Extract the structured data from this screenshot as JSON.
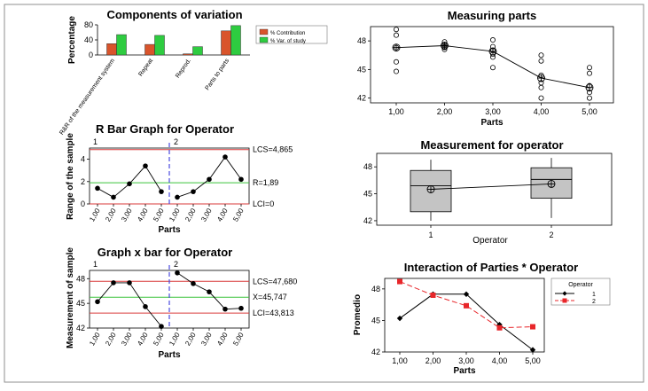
{
  "chart_data": [
    {
      "id": "components",
      "type": "bar",
      "title": "Components of variation",
      "ylabel": "Percentage",
      "ylim": [
        0,
        80
      ],
      "yticks": [
        "0",
        "40",
        "80"
      ],
      "categories": [
        "R&R of the measurement system",
        "Repeat",
        "Reprod.",
        "Parts to parts"
      ],
      "series": [
        {
          "name": "% Contribution",
          "values": [
            30,
            28,
            3,
            64
          ],
          "color": "#d9542b"
        },
        {
          "name": "% Var. of study",
          "values": [
            54,
            52,
            22,
            78
          ],
          "color": "#2ecc40"
        }
      ],
      "legend": "top-right"
    },
    {
      "id": "measuring_parts",
      "type": "scatter",
      "title": "Measuring parts",
      "xlabel": "Parts",
      "ylim": [
        41.5,
        49.5
      ],
      "yticks": [
        "42",
        "45",
        "48"
      ],
      "categories": [
        "1,00",
        "2,00",
        "3,00",
        "4,00",
        "5,00"
      ],
      "points": [
        [
          49.2,
          48.6,
          47.3,
          45.8,
          44.8
        ],
        [
          47.9,
          47.6,
          47.4,
          47.1,
          47.3
        ],
        [
          48.1,
          47.4,
          47.0,
          46.6,
          46.3,
          45.2
        ],
        [
          46.5,
          45.9,
          44.4,
          43.6,
          43.1,
          42.0
        ],
        [
          45.2,
          44.6,
          43.3,
          42.6,
          42.0
        ]
      ],
      "means": [
        47.3,
        47.5,
        46.9,
        44.1,
        43.1
      ]
    },
    {
      "id": "r_bar",
      "type": "line",
      "title": "R Bar Graph for  Operator",
      "ylabel": "Range of the sample",
      "xlabel": "Parts",
      "ylim": [
        0,
        5
      ],
      "yticks": [
        "0",
        "2",
        "4"
      ],
      "groups": [
        "1",
        "2"
      ],
      "categories": [
        "1,00",
        "2,00",
        "3,00",
        "4,00",
        "5,00",
        "1,00",
        "2,00",
        "3,00",
        "4,00",
        "5,00"
      ],
      "values": [
        1.4,
        0.6,
        1.8,
        3.4,
        1.1,
        0.6,
        1.1,
        2.2,
        4.2,
        2.2
      ],
      "limits": {
        "ucl": 4.865,
        "center": 1.89,
        "lcl": 0
      },
      "limit_labels": {
        "ucl": "LCS=4,865",
        "center": "R=1,89",
        "lcl": "LCI=0"
      }
    },
    {
      "id": "x_bar",
      "type": "line",
      "title": "Graph x bar for Operator",
      "ylabel": "Measurement of sample",
      "xlabel": "Parts",
      "ylim": [
        42,
        49
      ],
      "yticks": [
        "42",
        "45",
        "48"
      ],
      "groups": [
        "1",
        "2"
      ],
      "categories": [
        "1,00",
        "2,00",
        "3,00",
        "4,00",
        "5,00",
        "1,00",
        "2,00",
        "3,00",
        "4,00",
        "5,00"
      ],
      "values": [
        45.2,
        47.5,
        47.5,
        44.6,
        42.2,
        48.7,
        47.4,
        46.4,
        44.3,
        44.4
      ],
      "limits": {
        "ucl": 47.68,
        "center": 45.747,
        "lcl": 43.813
      },
      "limit_labels": {
        "ucl": "LCS=47,680",
        "center": "X=45,747",
        "lcl": "LCI=43,813"
      }
    },
    {
      "id": "operator_box",
      "type": "box",
      "title": "Measurement for operator",
      "xlabel": "Operator",
      "ylim": [
        41.5,
        49.5
      ],
      "yticks": [
        "42",
        "45",
        "48"
      ],
      "categories": [
        "1",
        "2"
      ],
      "boxes": [
        {
          "min": 42.0,
          "q1": 43.0,
          "median": 45.9,
          "q3": 47.6,
          "max": 48.8,
          "mean": 45.5
        },
        {
          "min": 42.3,
          "q1": 44.5,
          "median": 46.6,
          "q3": 47.9,
          "max": 49.0,
          "mean": 46.1
        }
      ]
    },
    {
      "id": "interaction",
      "type": "line",
      "title": "Interaction of  Parties * Operator",
      "ylabel": "Promedio",
      "xlabel": "Parts",
      "ylim": [
        42,
        49
      ],
      "yticks": [
        "42",
        "45",
        "48"
      ],
      "categories": [
        "1,00",
        "2,00",
        "3,00",
        "4,00",
        "5,00"
      ],
      "legend_title": "Operator",
      "series": [
        {
          "name": "1",
          "values": [
            45.2,
            47.5,
            47.5,
            44.6,
            42.2
          ],
          "color": "#000000"
        },
        {
          "name": "2",
          "values": [
            48.7,
            47.4,
            46.4,
            44.3,
            44.4
          ],
          "color": "#e8262a"
        }
      ]
    }
  ]
}
